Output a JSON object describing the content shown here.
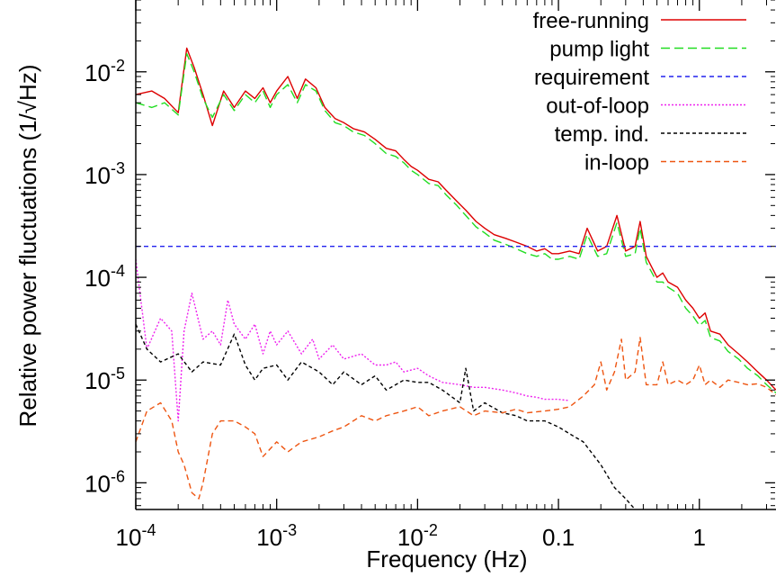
{
  "chart_data": {
    "type": "line",
    "xlabel": "Frequency (Hz)",
    "ylabel": "Relative power fluctuations (1/√Hz)",
    "xscale": "log",
    "yscale": "log",
    "xlim": [
      0.0001,
      3.5
    ],
    "ylim": [
      5.5e-07,
      0.05
    ],
    "grid": false,
    "legend_position": "top-right",
    "x_ticks": [
      {
        "value": 0.0001,
        "base": "10",
        "exp": "-4"
      },
      {
        "value": 0.001,
        "base": "10",
        "exp": "-3"
      },
      {
        "value": 0.01,
        "base": "10",
        "exp": "-2"
      },
      {
        "value": 0.1,
        "base": "0.1",
        "exp": ""
      },
      {
        "value": 1,
        "base": "1",
        "exp": ""
      }
    ],
    "y_ticks": [
      {
        "value": 0.01,
        "base": "10",
        "exp": "-2"
      },
      {
        "value": 0.001,
        "base": "10",
        "exp": "-3"
      },
      {
        "value": 0.0001,
        "base": "10",
        "exp": "-4"
      },
      {
        "value": 1e-05,
        "base": "10",
        "exp": "-5"
      },
      {
        "value": 1e-06,
        "base": "10",
        "exp": "-6"
      }
    ],
    "series": [
      {
        "name": "free-running",
        "color": "#dd0000",
        "dash": "",
        "x": [
          0.0001,
          0.00013,
          0.00016,
          0.0002,
          0.00023,
          0.00026,
          0.0003,
          0.00035,
          0.00042,
          0.0005,
          0.0006,
          0.0007,
          0.0008,
          0.0009,
          0.001,
          0.0012,
          0.0014,
          0.0016,
          0.0019,
          0.0022,
          0.0026,
          0.003,
          0.0035,
          0.0042,
          0.005,
          0.006,
          0.007,
          0.008,
          0.009,
          0.01,
          0.012,
          0.014,
          0.016,
          0.019,
          0.022,
          0.026,
          0.03,
          0.035,
          0.042,
          0.05,
          0.06,
          0.07,
          0.08,
          0.09,
          0.1,
          0.12,
          0.14,
          0.16,
          0.19,
          0.22,
          0.26,
          0.3,
          0.35,
          0.38,
          0.42,
          0.5,
          0.55,
          0.6,
          0.7,
          0.8,
          0.9,
          1.0,
          1.1,
          1.2,
          1.4,
          1.6,
          1.9,
          2.2,
          2.6,
          3.0,
          3.5
        ],
        "values": [
          0.006,
          0.0065,
          0.0055,
          0.004,
          0.017,
          0.011,
          0.006,
          0.003,
          0.0065,
          0.0045,
          0.0065,
          0.0055,
          0.007,
          0.005,
          0.0065,
          0.009,
          0.0055,
          0.0085,
          0.007,
          0.0045,
          0.0035,
          0.0032,
          0.0028,
          0.0026,
          0.0022,
          0.0018,
          0.0017,
          0.0014,
          0.0012,
          0.0011,
          0.0009,
          0.00085,
          0.0007,
          0.00055,
          0.00045,
          0.00035,
          0.0003,
          0.00026,
          0.00024,
          0.00022,
          0.0002,
          0.00018,
          0.00019,
          0.00017,
          0.00017,
          0.00018,
          0.00017,
          0.0003,
          0.00018,
          0.0002,
          0.0004,
          0.00018,
          0.0002,
          0.00035,
          0.00016,
          0.0001,
          0.00011,
          9e-05,
          8e-05,
          6e-05,
          5e-05,
          4e-05,
          4.5e-05,
          3e-05,
          2.8e-05,
          2.2e-05,
          1.8e-05,
          1.5e-05,
          1.2e-05,
          1e-05,
          8e-06
        ]
      },
      {
        "name": "pump light",
        "color": "#22dd22",
        "dash": "10,5",
        "x": [
          0.0001,
          0.00013,
          0.00016,
          0.0002,
          0.00023,
          0.00026,
          0.0003,
          0.00035,
          0.00042,
          0.0005,
          0.0006,
          0.0007,
          0.0008,
          0.0009,
          0.001,
          0.0012,
          0.0014,
          0.0016,
          0.0019,
          0.0022,
          0.0026,
          0.003,
          0.0035,
          0.0042,
          0.005,
          0.006,
          0.007,
          0.008,
          0.009,
          0.01,
          0.012,
          0.014,
          0.016,
          0.019,
          0.022,
          0.026,
          0.03,
          0.035,
          0.042,
          0.05,
          0.06,
          0.07,
          0.08,
          0.09,
          0.1,
          0.12,
          0.14,
          0.16,
          0.19,
          0.22,
          0.26,
          0.3,
          0.35,
          0.38,
          0.42,
          0.5,
          0.55,
          0.6,
          0.7,
          0.8,
          0.9,
          1.0,
          1.1,
          1.2,
          1.4,
          1.6,
          1.9,
          2.2,
          2.6,
          3.0,
          3.5
        ],
        "values": [
          0.005,
          0.0045,
          0.005,
          0.0038,
          0.015,
          0.01,
          0.0055,
          0.0036,
          0.006,
          0.0042,
          0.006,
          0.005,
          0.0065,
          0.0045,
          0.006,
          0.0075,
          0.005,
          0.0075,
          0.0065,
          0.0042,
          0.0032,
          0.003,
          0.0026,
          0.0024,
          0.002,
          0.0016,
          0.0015,
          0.0013,
          0.0011,
          0.001,
          0.00082,
          0.00078,
          0.00063,
          0.0005,
          0.0004,
          0.00031,
          0.00027,
          0.00023,
          0.00021,
          0.00019,
          0.00017,
          0.00016,
          0.00017,
          0.00015,
          0.00015,
          0.00016,
          0.00015,
          0.00026,
          0.00016,
          0.00017,
          0.00034,
          0.00016,
          0.00017,
          0.0003,
          0.00014,
          9e-05,
          9e-05,
          8e-05,
          7e-05,
          5e-05,
          4.2e-05,
          3.4e-05,
          3.8e-05,
          2.6e-05,
          2.4e-05,
          1.9e-05,
          1.6e-05,
          1.3e-05,
          1.1e-05,
          9e-06,
          7.5e-06
        ]
      },
      {
        "name": "requirement",
        "color": "#2222ee",
        "dash": "5,4",
        "x": [
          0.0001,
          3.5
        ],
        "values": [
          0.0002,
          0.0002
        ]
      },
      {
        "name": "out-of-loop",
        "color": "#ee22ee",
        "dash": "2,2",
        "x": [
          0.0001,
          0.00012,
          0.00015,
          0.00018,
          0.0002,
          0.00022,
          0.00025,
          0.0003,
          0.00035,
          0.0004,
          0.00045,
          0.0005,
          0.0006,
          0.0007,
          0.0008,
          0.0009,
          0.001,
          0.0012,
          0.0015,
          0.0018,
          0.002,
          0.0025,
          0.003,
          0.004,
          0.005,
          0.006,
          0.007,
          0.008,
          0.01,
          0.012,
          0.015,
          0.02,
          0.025,
          0.03,
          0.04,
          0.05,
          0.06,
          0.07,
          0.08,
          0.1,
          0.12
        ],
        "values": [
          0.00015,
          2e-05,
          4e-05,
          3e-05,
          4e-06,
          3e-05,
          7e-05,
          2.5e-05,
          3e-05,
          2.2e-05,
          6e-05,
          3.5e-05,
          2.5e-05,
          3.5e-05,
          1.8e-05,
          3e-05,
          2.2e-05,
          3e-05,
          1.8e-05,
          2.5e-05,
          1.6e-05,
          2.2e-05,
          1.6e-05,
          1.8e-05,
          1.4e-05,
          1.4e-05,
          1.5e-05,
          1.2e-05,
          1.3e-05,
          1.1e-05,
          9.5e-06,
          9e-06,
          8.5e-06,
          8.5e-06,
          8e-06,
          7.5e-06,
          7e-06,
          6.8e-06,
          6.5e-06,
          6.5e-06,
          6.3e-06
        ]
      },
      {
        "name": "temp. ind.",
        "color": "#000000",
        "dash": "4,3",
        "x": [
          0.0001,
          0.00012,
          0.00015,
          0.0002,
          0.00025,
          0.0003,
          0.0004,
          0.0005,
          0.0006,
          0.0007,
          0.0008,
          0.001,
          0.0012,
          0.0015,
          0.002,
          0.0025,
          0.003,
          0.004,
          0.005,
          0.006,
          0.008,
          0.01,
          0.012,
          0.015,
          0.02,
          0.022,
          0.025,
          0.03,
          0.04,
          0.05,
          0.06,
          0.08,
          0.1,
          0.12,
          0.15,
          0.2,
          0.25,
          0.3,
          0.35
        ],
        "values": [
          3.5e-05,
          2e-05,
          1.5e-05,
          1.8e-05,
          1.2e-05,
          1.5e-05,
          1.4e-05,
          2.8e-05,
          1.4e-05,
          1e-05,
          1.3e-05,
          1.4e-05,
          1e-05,
          1.5e-05,
          1.2e-05,
          9e-06,
          1.2e-05,
          9e-06,
          1.1e-05,
          8e-06,
          1e-05,
          9.5e-06,
          9.5e-06,
          8e-06,
          6e-06,
          1.3e-05,
          5e-06,
          6e-06,
          4.8e-06,
          4.5e-06,
          4e-06,
          4e-06,
          3.5e-06,
          3e-06,
          2.5e-06,
          1.5e-06,
          9e-07,
          7e-07,
          5.5e-07
        ]
      },
      {
        "name": "in-loop",
        "color": "#ee5511",
        "dash": "6,4",
        "x": [
          0.0001,
          0.00012,
          0.00015,
          0.00018,
          0.0002,
          0.00022,
          0.00025,
          0.00028,
          0.0003,
          0.00035,
          0.0004,
          0.0005,
          0.0006,
          0.0007,
          0.0008,
          0.001,
          0.0012,
          0.0015,
          0.002,
          0.0025,
          0.003,
          0.004,
          0.005,
          0.006,
          0.008,
          0.01,
          0.012,
          0.015,
          0.02,
          0.025,
          0.03,
          0.04,
          0.05,
          0.06,
          0.08,
          0.1,
          0.12,
          0.15,
          0.18,
          0.2,
          0.22,
          0.25,
          0.28,
          0.3,
          0.35,
          0.38,
          0.42,
          0.5,
          0.55,
          0.6,
          0.7,
          0.8,
          0.9,
          1.0,
          1.1,
          1.2,
          1.4,
          1.6,
          1.9,
          2.2,
          2.6,
          3.0,
          3.5
        ],
        "values": [
          2.5e-06,
          5e-06,
          6e-06,
          4e-06,
          2e-06,
          1.5e-06,
          8e-07,
          7e-07,
          1e-06,
          3e-06,
          4e-06,
          4e-06,
          3.5e-06,
          3e-06,
          1.8e-06,
          2.5e-06,
          2e-06,
          2.5e-06,
          2.8e-06,
          3.2e-06,
          3.5e-06,
          4.5e-06,
          4e-06,
          4.5e-06,
          5e-06,
          5.5e-06,
          4.5e-06,
          5e-06,
          5.5e-06,
          4.5e-06,
          5e-06,
          4.8e-06,
          5.2e-06,
          4.8e-06,
          5e-06,
          5.2e-06,
          5.5e-06,
          7e-06,
          9e-06,
          1.5e-05,
          8e-06,
          1.2e-05,
          2.5e-05,
          1e-05,
          1.2e-05,
          2.6e-05,
          9e-06,
          9e-06,
          1.5e-05,
          9e-06,
          1e-05,
          9e-06,
          1e-05,
          1.4e-05,
          9e-06,
          1e-05,
          8.5e-06,
          1e-05,
          9.5e-06,
          9e-06,
          9.2e-06,
          8.5e-06,
          7.2e-06
        ]
      }
    ]
  }
}
